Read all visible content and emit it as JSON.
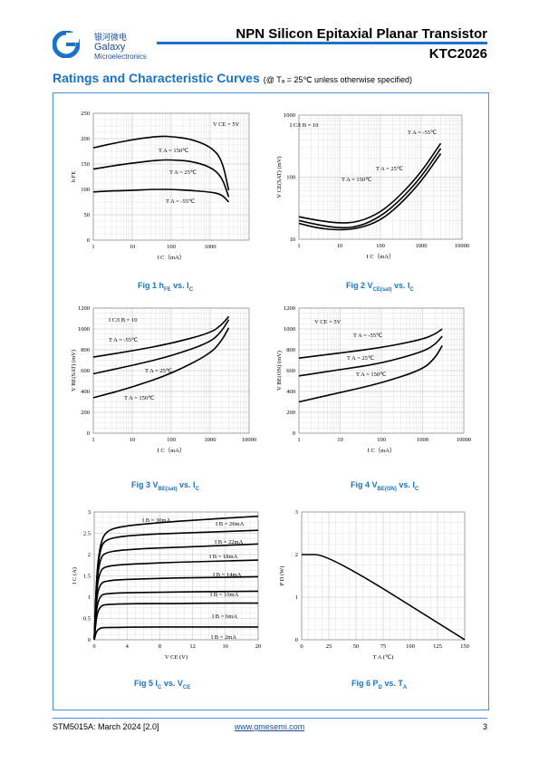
{
  "header": {
    "logo_cn": "银河微电",
    "logo_en": "Galaxy",
    "logo_sub": "Microelectronics",
    "title": "NPN Silicon Epitaxial Planar Transistor",
    "part": "KTC2026"
  },
  "section": {
    "title": "Ratings and Characteristic Curves",
    "note": "(@ Tₐ = 25℃ unless otherwise specified)"
  },
  "figures": {
    "fig1": {
      "caption_pre": "Fig 1   h",
      "caption_sub": "FE",
      "caption_post": " vs. I",
      "caption_sub2": "C"
    },
    "fig2": {
      "caption_pre": "Fig 2   V",
      "caption_sub": "CE(sat)",
      "caption_post": " vs. I",
      "caption_sub2": "C"
    },
    "fig3": {
      "caption_pre": "Fig 3   V",
      "caption_sub": "BE(sat)",
      "caption_post": " vs. I",
      "caption_sub2": "C"
    },
    "fig4": {
      "caption_pre": "Fig 4   V",
      "caption_sub": "BE(ON)",
      "caption_post": " vs. I",
      "caption_sub2": "C"
    },
    "fig5": {
      "caption_pre": "Fig 5   I",
      "caption_sub": "C",
      "caption_post": " vs. V",
      "caption_sub2": "CE"
    },
    "fig6": {
      "caption_pre": "Fig 6   P",
      "caption_sub": "D",
      "caption_post": " vs. T",
      "caption_sub2": "A"
    }
  },
  "chart_data": [
    {
      "id": "fig1",
      "type": "line",
      "xscale": "log",
      "xlim": [
        1,
        10000
      ],
      "ylim": [
        0,
        250
      ],
      "xticks": [
        "1",
        "10",
        "100",
        "1000"
      ],
      "yticks": [
        "0",
        "50",
        "100",
        "150",
        "200",
        "250"
      ],
      "xlabel": "I C（mA）",
      "ylabel": "h FE",
      "annotations": [
        "V CE = 5V",
        "T A = 150℃",
        "T A = 25℃",
        "T A = -55℃"
      ],
      "series": [
        {
          "name": "T A = 150℃",
          "x": [
            1,
            3,
            10,
            30,
            60,
            100,
            300,
            1000,
            2000,
            3000
          ],
          "y": [
            182,
            190,
            198,
            203,
            205,
            204,
            200,
            185,
            160,
            98
          ]
        },
        {
          "name": "T A = 25℃",
          "x": [
            1,
            3,
            10,
            30,
            60,
            100,
            300,
            1000,
            2000,
            3000
          ],
          "y": [
            140,
            146,
            152,
            156,
            158,
            158,
            156,
            145,
            125,
            85
          ]
        },
        {
          "name": "T A = -55℃",
          "x": [
            1,
            3,
            10,
            30,
            60,
            100,
            300,
            1000,
            2000,
            3000
          ],
          "y": [
            95,
            97,
            98,
            100,
            100,
            100,
            98,
            95,
            90,
            75
          ]
        }
      ]
    },
    {
      "id": "fig2",
      "type": "line",
      "xscale": "log",
      "yscale": "log",
      "xlim": [
        1,
        10000
      ],
      "ylim": [
        10,
        1000
      ],
      "xticks": [
        "1",
        "10",
        "100",
        "1000",
        "10000"
      ],
      "yticks": [
        "10",
        "100",
        "1000"
      ],
      "xlabel": "I C（mA）",
      "ylabel": "V CE(SAT) (mV)",
      "annotations": [
        "I C/I B = 10",
        "T A = -55℃",
        "T A = 25℃",
        "T A = 150℃"
      ],
      "series": [
        {
          "name": "T A = -55℃",
          "x": [
            1,
            3,
            10,
            30,
            100,
            300,
            1000,
            3000
          ],
          "y": [
            23,
            20,
            18,
            19,
            27,
            50,
            120,
            350
          ]
        },
        {
          "name": "T A = 25℃",
          "x": [
            1,
            3,
            10,
            30,
            100,
            300,
            1000,
            3000
          ],
          "y": [
            20,
            17,
            15,
            16,
            23,
            42,
            100,
            290
          ]
        },
        {
          "name": "T A = 150℃",
          "x": [
            1,
            3,
            10,
            30,
            100,
            300,
            1000,
            3000
          ],
          "y": [
            18,
            15,
            14,
            15,
            20,
            36,
            85,
            240
          ]
        }
      ]
    },
    {
      "id": "fig3",
      "type": "line",
      "xscale": "log",
      "xlim": [
        1,
        10000
      ],
      "ylim": [
        0,
        1200
      ],
      "xticks": [
        "1",
        "10",
        "100",
        "1000",
        "10000"
      ],
      "yticks": [
        "0",
        "200",
        "400",
        "600",
        "800",
        "1000",
        "1200"
      ],
      "xlabel": "I C（mA）",
      "ylabel": "V BE(SAT) (mV)",
      "annotations": [
        "I C/I B = 10",
        "T A = -55℃",
        "T A = 25℃",
        "T A = 150℃"
      ],
      "series": [
        {
          "name": "T A = -55℃",
          "x": [
            1,
            10,
            100,
            1000,
            2000,
            3000
          ],
          "y": [
            730,
            790,
            860,
            960,
            1040,
            1120
          ]
        },
        {
          "name": "T A = 25℃",
          "x": [
            1,
            10,
            100,
            1000,
            2000,
            3000
          ],
          "y": [
            570,
            650,
            740,
            870,
            980,
            1090
          ]
        },
        {
          "name": "T A = 150℃",
          "x": [
            1,
            10,
            100,
            1000,
            2000,
            3000
          ],
          "y": [
            340,
            440,
            570,
            760,
            890,
            1010
          ]
        }
      ]
    },
    {
      "id": "fig4",
      "type": "line",
      "xscale": "log",
      "xlim": [
        1,
        10000
      ],
      "ylim": [
        0,
        1200
      ],
      "xticks": [
        "1",
        "10",
        "100",
        "1000",
        "10000"
      ],
      "yticks": [
        "0",
        "200",
        "400",
        "600",
        "800",
        "1000",
        "1200"
      ],
      "xlabel": "I C（mA）",
      "ylabel": "V BE(ON) (mV)",
      "annotations": [
        "V CE = 5V",
        "T A = -55℃",
        "T A = 25℃",
        "T A = 150℃"
      ],
      "series": [
        {
          "name": "T A = -55℃",
          "x": [
            1,
            10,
            100,
            1000,
            2000,
            3000
          ],
          "y": [
            720,
            770,
            820,
            900,
            950,
            1000
          ]
        },
        {
          "name": "T A = 25℃",
          "x": [
            1,
            10,
            100,
            1000,
            2000,
            3000
          ],
          "y": [
            550,
            610,
            670,
            780,
            850,
            930
          ]
        },
        {
          "name": "T A = 150℃",
          "x": [
            1,
            10,
            100,
            1000,
            2000,
            3000
          ],
          "y": [
            300,
            390,
            480,
            610,
            720,
            840
          ]
        }
      ]
    },
    {
      "id": "fig5",
      "type": "line",
      "xlim": [
        0,
        20
      ],
      "ylim": [
        0,
        3
      ],
      "xticks": [
        "0",
        "4",
        "8",
        "12",
        "16",
        "20"
      ],
      "yticks": [
        "0",
        "0.5",
        "1",
        "1.5",
        "2",
        "2.5",
        "3"
      ],
      "xlabel": "V CE (V)",
      "ylabel": "I C (A)",
      "annotations": [
        "I B = 30mA",
        "I B = 26mA",
        "I B = 22mA",
        "I B = 18mA",
        "I B = 14mA",
        "I B = 10mA",
        "I B = 6mA",
        "I B = 2mA"
      ],
      "series": [
        {
          "name": "I B = 30mA",
          "x": [
            0,
            0.3,
            0.8,
            1.5,
            3,
            6,
            10,
            14,
            20
          ],
          "y": [
            0,
            1.6,
            2.3,
            2.55,
            2.65,
            2.72,
            2.78,
            2.83,
            2.9
          ]
        },
        {
          "name": "I B = 26mA",
          "x": [
            0,
            0.3,
            0.8,
            1.5,
            3,
            6,
            10,
            14,
            20
          ],
          "y": [
            0,
            1.5,
            2.2,
            2.35,
            2.42,
            2.47,
            2.5,
            2.53,
            2.57
          ]
        },
        {
          "name": "I B = 22mA",
          "x": [
            0,
            0.3,
            0.8,
            1.5,
            3,
            6,
            10,
            14,
            20
          ],
          "y": [
            0,
            1.4,
            1.95,
            2.05,
            2.1,
            2.14,
            2.17,
            2.2,
            2.25
          ]
        },
        {
          "name": "I B = 18mA",
          "x": [
            0,
            0.3,
            0.8,
            1.5,
            3,
            6,
            10,
            14,
            20
          ],
          "y": [
            0,
            1.25,
            1.65,
            1.72,
            1.76,
            1.79,
            1.82,
            1.84,
            1.87
          ]
        },
        {
          "name": "I B = 14mA",
          "x": [
            0,
            0.3,
            0.8,
            1.5,
            3,
            6,
            10,
            14,
            20
          ],
          "y": [
            0,
            1.05,
            1.33,
            1.38,
            1.41,
            1.43,
            1.45,
            1.46,
            1.48
          ]
        },
        {
          "name": "I B = 10mA",
          "x": [
            0,
            0.3,
            0.8,
            1.5,
            3,
            6,
            10,
            14,
            20
          ],
          "y": [
            0,
            0.8,
            1.05,
            1.08,
            1.1,
            1.11,
            1.12,
            1.13,
            1.14
          ]
        },
        {
          "name": "I B = 6mA",
          "x": [
            0,
            0.3,
            0.8,
            1.5,
            3,
            6,
            10,
            14,
            20
          ],
          "y": [
            0,
            0.6,
            0.8,
            0.83,
            0.84,
            0.85,
            0.85,
            0.86,
            0.86
          ]
        },
        {
          "name": "I B = 2mA",
          "x": [
            0,
            0.3,
            0.8,
            1.5,
            3,
            6,
            10,
            14,
            20
          ],
          "y": [
            0,
            0.22,
            0.28,
            0.29,
            0.29,
            0.3,
            0.3,
            0.3,
            0.3
          ]
        }
      ]
    },
    {
      "id": "fig6",
      "type": "line",
      "xlim": [
        0,
        150
      ],
      "ylim": [
        0,
        3
      ],
      "xticks": [
        "0",
        "25",
        "50",
        "75",
        "100",
        "125",
        "150"
      ],
      "yticks": [
        "0",
        "1",
        "2",
        "3"
      ],
      "xlabel": "T A (℃)",
      "ylabel": "P D (W)",
      "series": [
        {
          "name": "",
          "x": [
            0,
            25,
            150
          ],
          "y": [
            2,
            2,
            0
          ]
        }
      ]
    }
  ],
  "footer": {
    "left": "STM5015A: March 2024 [2.0]",
    "center": "www.gmesemi.com",
    "right": "3"
  }
}
